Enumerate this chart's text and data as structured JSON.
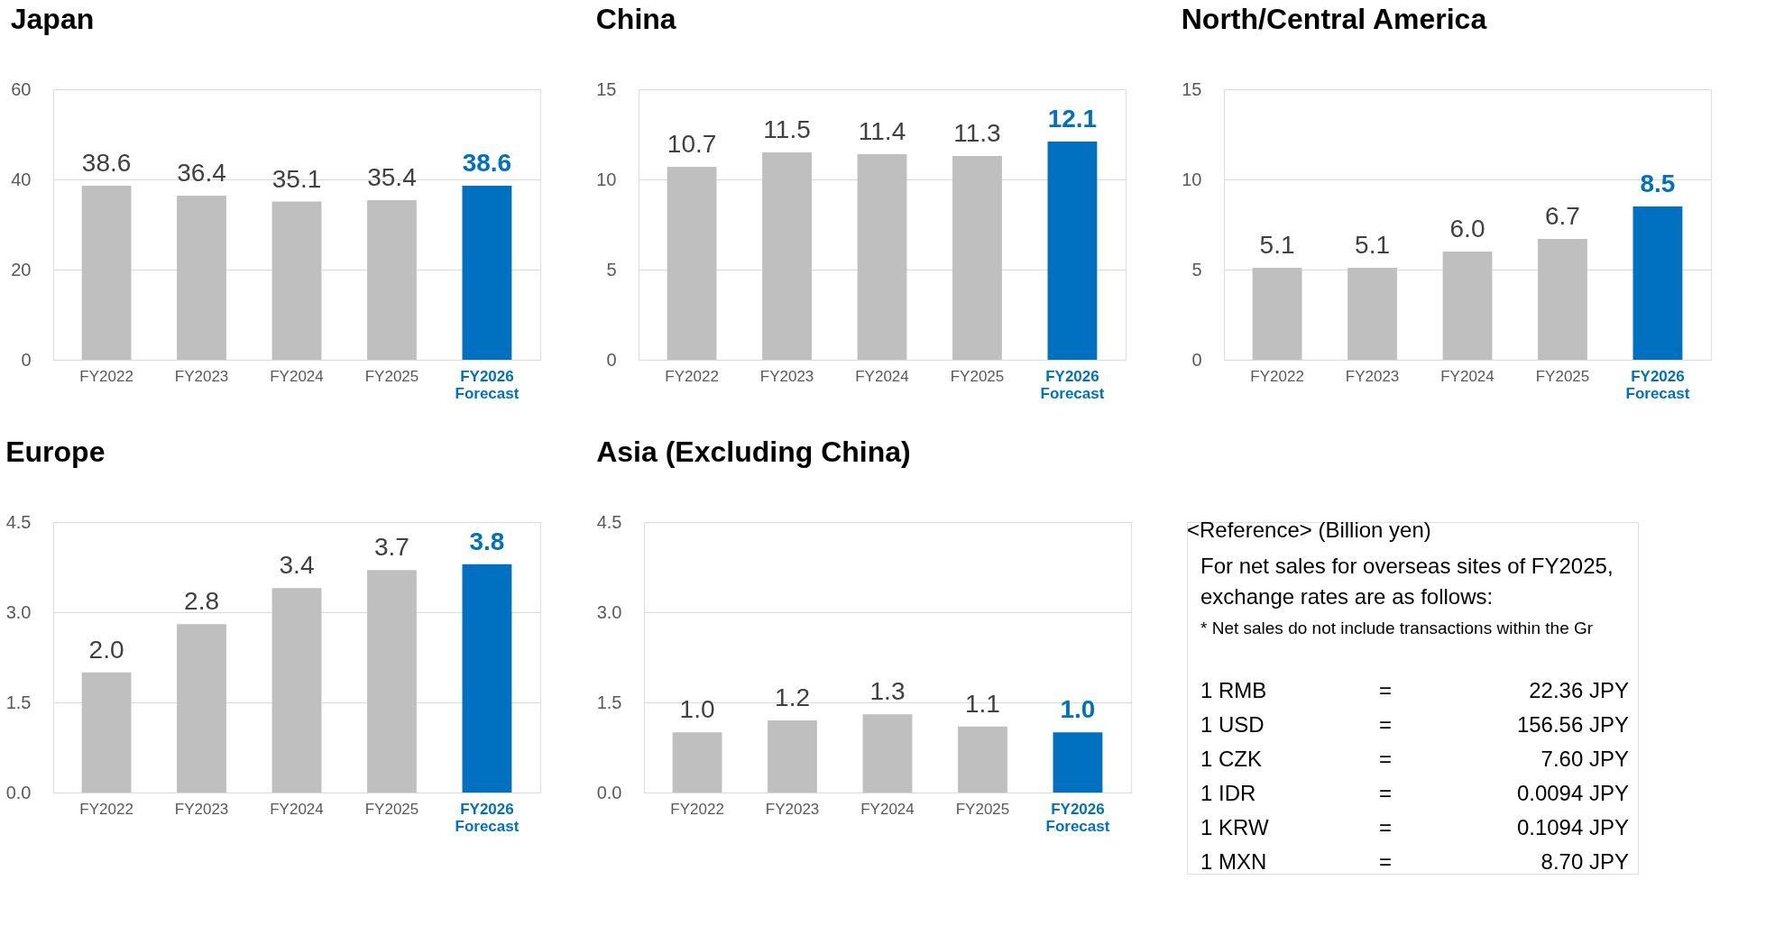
{
  "chart_data": [
    {
      "type": "bar",
      "title": "Japan",
      "categories": [
        "FY2022",
        "FY2023",
        "FY2024",
        "FY2025",
        "FY2026\nForecast"
      ],
      "values": [
        38.6,
        36.4,
        35.1,
        35.4,
        38.6
      ],
      "colors": [
        "#bfbfbf",
        "#bfbfbf",
        "#bfbfbf",
        "#bfbfbf",
        "#0070c0"
      ],
      "ylim": [
        0,
        60
      ],
      "yticks": [
        0,
        20,
        40,
        60
      ],
      "grid": "y",
      "data_labels": true
    },
    {
      "type": "bar",
      "title": "China",
      "categories": [
        "FY2022",
        "FY2023",
        "FY2024",
        "FY2025",
        "FY2026\nForecast"
      ],
      "values": [
        10.7,
        11.5,
        11.4,
        11.3,
        12.1
      ],
      "colors": [
        "#bfbfbf",
        "#bfbfbf",
        "#bfbfbf",
        "#bfbfbf",
        "#0070c0"
      ],
      "ylim": [
        0,
        15
      ],
      "yticks": [
        0,
        5,
        10,
        15
      ],
      "grid": "y",
      "data_labels": true
    },
    {
      "type": "bar",
      "title": "North/Central America",
      "categories": [
        "FY2022",
        "FY2023",
        "FY2024",
        "FY2025",
        "FY2026\nForecast"
      ],
      "values": [
        5.1,
        5.1,
        6.0,
        6.7,
        8.5
      ],
      "colors": [
        "#bfbfbf",
        "#bfbfbf",
        "#bfbfbf",
        "#bfbfbf",
        "#0070c0"
      ],
      "value_labels": [
        "5.1",
        "5.1",
        "6.0",
        "6.7",
        "8.5"
      ],
      "ylim": [
        0,
        15
      ],
      "yticks": [
        0,
        5,
        10,
        15
      ],
      "grid": "y"
    },
    {
      "type": "bar",
      "title": "Europe",
      "categories": [
        "FY2022",
        "FY2023",
        "FY2024",
        "FY2025",
        "FY2026\nForecast"
      ],
      "values": [
        2.0,
        2.8,
        3.4,
        3.7,
        3.8
      ],
      "colors": [
        "#bfbfbf",
        "#bfbfbf",
        "#bfbfbf",
        "#bfbfbf",
        "#0070c0"
      ],
      "value_labels": [
        "2.0",
        "2.8",
        "3.4",
        "3.7",
        "3.8"
      ],
      "ylim": [
        0,
        4.5
      ],
      "yticks": [
        {
          "value": 0,
          "label": "0.0"
        },
        1.5,
        {
          "value": 3,
          "label": "3.0"
        },
        4.5
      ],
      "grid": "y"
    },
    {
      "type": "bar",
      "title": "Asia (Excluding China)",
      "categories": [
        "FY2022",
        "FY2023",
        "FY2024",
        "FY2025",
        "FY2026\nForecast"
      ],
      "values": [
        1.0,
        1.2,
        1.3,
        1.1,
        1.0
      ],
      "colors": [
        "#bfbfbf",
        "#bfbfbf",
        "#bfbfbf",
        "#bfbfbf",
        "#0070c0"
      ],
      "value_labels": [
        "1.0",
        "1.2",
        "1.3",
        "1.1",
        "1.0"
      ],
      "ylim": [
        0,
        4.5
      ],
      "yticks": [
        {
          "value": 0,
          "label": "0.0"
        },
        1.5,
        {
          "value": 3,
          "label": "3.0"
        },
        4.5
      ],
      "grid": "y"
    },
    {
      "type": "other",
      "title": "<Reference>    (Billion yen)",
      "annotations": [
        "For net sales for overseas sites of FY2025,",
        "exchange rates are as follows:",
        "* Net sales do not include transactions within the Gr",
        "1 RMB   =   22.36 JPY",
        "1 USD   =   156.56 JPY",
        "1 CZK   =   7.60 JPY",
        "1 IDR   =   0.0094 JPY",
        "1 KRW   =   0.1094 JPY",
        "1 MXN   =   8.70 JPY"
      ]
    }
  ]
}
